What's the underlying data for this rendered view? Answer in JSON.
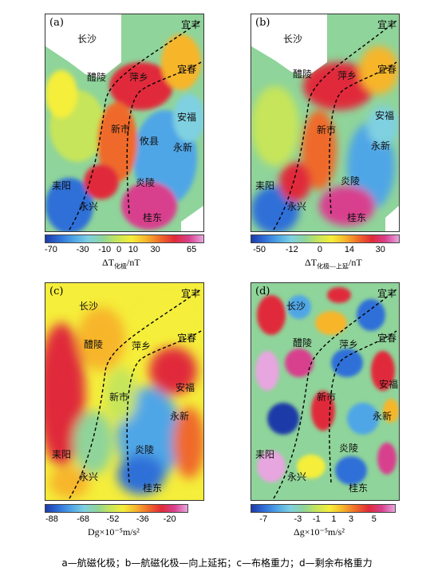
{
  "panels": [
    {
      "label": "(a)",
      "cities": [
        "长沙",
        "宜丰",
        "醴陵",
        "萍乡",
        "宜春",
        "安福",
        "新市",
        "永新",
        "攸县",
        "炎陵",
        "耒阳",
        "永兴",
        "桂东"
      ]
    },
    {
      "label": "(b)",
      "cities": [
        "长沙",
        "宜丰",
        "醴陵",
        "萍乡",
        "宜春",
        "安福",
        "新市",
        "永新",
        "炎陵",
        "耒阳",
        "永兴",
        "桂东"
      ]
    },
    {
      "label": "(c)",
      "cities": [
        "长沙",
        "宜丰",
        "醴陵",
        "萍乡",
        "宜春",
        "安福",
        "新市",
        "永新",
        "炎陵",
        "耒阳",
        "永兴",
        "桂东"
      ]
    },
    {
      "label": "(d)",
      "cities": [
        "长沙",
        "宜丰",
        "醴陵",
        "萍乡",
        "宜春",
        "安福",
        "新市",
        "永新",
        "炎陵",
        "耒阳",
        "永兴",
        "桂东"
      ]
    }
  ],
  "colorbars": [
    {
      "ticks": [
        "-70",
        "-30",
        "-10",
        "0",
        "10",
        "30",
        "65"
      ],
      "title_main": "ΔT",
      "title_sub": "化极",
      "title_unit": "/nT"
    },
    {
      "ticks": [
        "-50",
        "-12",
        "0",
        "14",
        "30"
      ],
      "title_main": "ΔT",
      "title_sub": "化极—上延",
      "title_unit": "/nT"
    },
    {
      "ticks": [
        "-88",
        "-68",
        "-52",
        "-36",
        "-20"
      ],
      "title_main": "Dg×10⁻⁵m/s²",
      "title_sub": "",
      "title_unit": ""
    },
    {
      "ticks": [
        "-7",
        "-3",
        "-1",
        "1",
        "3",
        "5"
      ],
      "title_main": "Δg×10⁻⁵m/s²",
      "title_sub": "",
      "title_unit": ""
    }
  ],
  "caption": "a—航磁化极；b—航磁化极—向上延拓；c—布格重力；d—剩余布格重力",
  "palette": [
    "#1e3aa8",
    "#2f6fd8",
    "#4fa6e6",
    "#7fd0e0",
    "#8fd49a",
    "#c6e55a",
    "#f5ee3a",
    "#f7b52c",
    "#ef6a2a",
    "#e02a3a",
    "#d8408e",
    "#e7a6df"
  ]
}
